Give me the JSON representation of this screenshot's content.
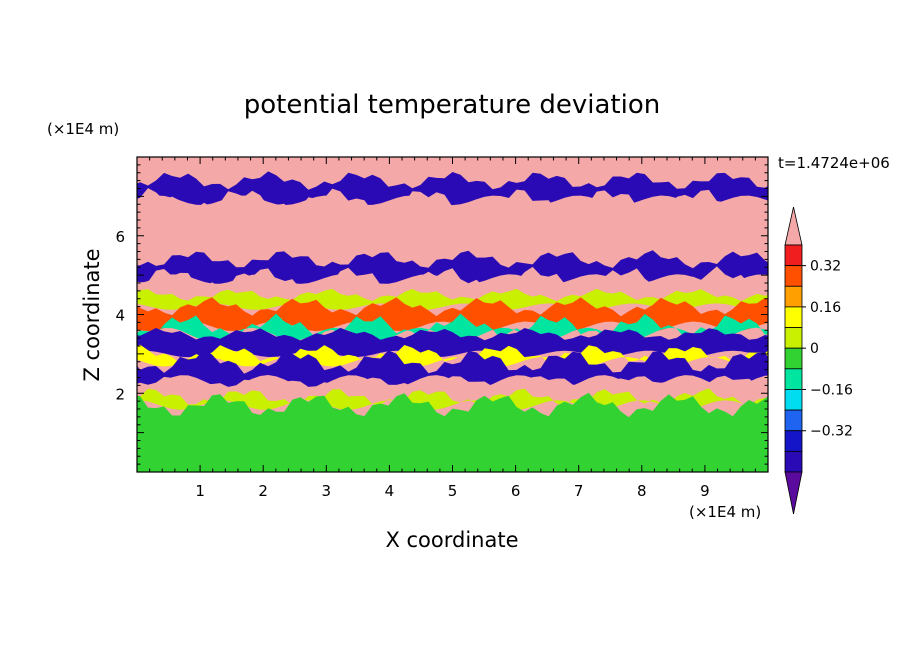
{
  "chart_data": {
    "type": "heatmap",
    "title": "potential temperature deviation",
    "xlabel": "X coordinate",
    "ylabel": "Z coordinate",
    "x_units": "(×1E4 m)",
    "y_units": "(×1E4 m)",
    "time_label": "t=1.4724e+06",
    "xlim": [
      0,
      10
    ],
    "ylim": [
      0,
      8
    ],
    "x_ticks": [
      "1",
      "2",
      "3",
      "4",
      "5",
      "6",
      "7",
      "8",
      "9"
    ],
    "y_ticks": [
      "2",
      "4",
      "6"
    ],
    "colorbar": {
      "levels": [
        -0.48,
        -0.4,
        -0.32,
        -0.24,
        -0.16,
        -0.08,
        0,
        0.08,
        0.16,
        0.24,
        0.32,
        0.4
      ],
      "tick_labels": [
        "0.32",
        "0.16",
        "0",
        "−0.16",
        "−0.32"
      ],
      "tick_values": [
        0.32,
        0.16,
        0,
        -0.16,
        -0.32
      ],
      "colors": [
        "#5a0b9e",
        "#2a0ab4",
        "#1414c8",
        "#1e64f0",
        "#00dcf0",
        "#00e6a0",
        "#32d232",
        "#c8f000",
        "#ffff00",
        "#ffa000",
        "#ff5000",
        "#f01e1e",
        "#f4a8a8"
      ],
      "extend": "both"
    },
    "layers": [
      {
        "z": [
          7.4,
          8.0
        ],
        "value": 0.45
      },
      {
        "z": [
          6.9,
          7.4
        ],
        "value": -0.45
      },
      {
        "z": [
          6.3,
          6.9
        ],
        "value": 0.45
      },
      {
        "z": [
          5.4,
          6.3
        ],
        "value": 0.45
      },
      {
        "z": [
          4.9,
          5.4
        ],
        "value": -0.45
      },
      {
        "z": [
          4.5,
          4.9
        ],
        "value": 0.45
      },
      {
        "z": [
          4.2,
          4.5
        ],
        "value": 0.0
      },
      {
        "z": [
          3.7,
          4.2
        ],
        "value": 0.25
      },
      {
        "z": [
          3.5,
          3.7
        ],
        "value": -0.15
      },
      {
        "z": [
          3.0,
          3.5
        ],
        "value": -0.45
      },
      {
        "z": [
          2.8,
          3.0
        ],
        "value": 0.1
      },
      {
        "z": [
          2.3,
          2.8
        ],
        "value": -0.45
      },
      {
        "z": [
          1.9,
          2.3
        ],
        "value": 0.45
      },
      {
        "z": [
          1.7,
          1.9
        ],
        "value": 0.05
      },
      {
        "z": [
          0.0,
          1.7
        ],
        "value": -0.02
      }
    ],
    "legend_position": "right"
  }
}
